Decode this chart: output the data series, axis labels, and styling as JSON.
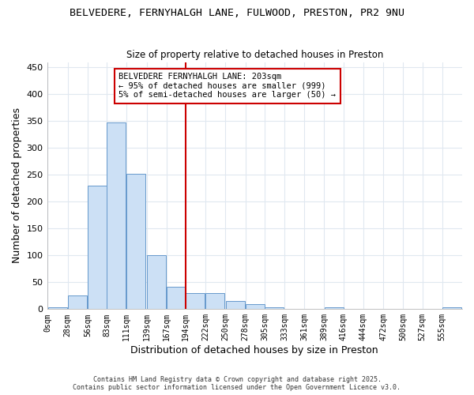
{
  "title": "BELVEDERE, FERNYHALGH LANE, FULWOOD, PRESTON, PR2 9NU",
  "subtitle": "Size of property relative to detached houses in Preston",
  "xlabel": "Distribution of detached houses by size in Preston",
  "ylabel": "Number of detached properties",
  "bar_color": "#cce0f5",
  "bar_edge_color": "#6699cc",
  "background_color": "#ffffff",
  "grid_color": "#e0e8f0",
  "vline_x": 194,
  "vline_color": "#cc0000",
  "annotation_line1": "BELVEDERE FERNYHALGH LANE: 203sqm",
  "annotation_line2": "← 95% of detached houses are smaller (999)",
  "annotation_line3": "5% of semi-detached houses are larger (50) →",
  "annotation_box_color": "#cc0000",
  "bins_left_edges": [
    0,
    28,
    56,
    83,
    111,
    139,
    167,
    194,
    222,
    250,
    278,
    305,
    333,
    361,
    389,
    416,
    444,
    472,
    500,
    527,
    555
  ],
  "bin_width": 27,
  "bar_heights": [
    3,
    25,
    230,
    347,
    252,
    100,
    42,
    30,
    30,
    15,
    10,
    3,
    0,
    0,
    3,
    0,
    0,
    0,
    0,
    0,
    3
  ],
  "tick_labels": [
    "0sqm",
    "28sqm",
    "56sqm",
    "83sqm",
    "111sqm",
    "139sqm",
    "167sqm",
    "194sqm",
    "222sqm",
    "250sqm",
    "278sqm",
    "305sqm",
    "333sqm",
    "361sqm",
    "389sqm",
    "416sqm",
    "444sqm",
    "472sqm",
    "500sqm",
    "527sqm",
    "555sqm"
  ],
  "ylim": [
    0,
    460
  ],
  "yticks": [
    0,
    50,
    100,
    150,
    200,
    250,
    300,
    350,
    400,
    450
  ],
  "footer_text": "Contains HM Land Registry data © Crown copyright and database right 2025.\nContains public sector information licensed under the Open Government Licence v3.0.",
  "figsize": [
    6.0,
    5.0
  ],
  "dpi": 100
}
